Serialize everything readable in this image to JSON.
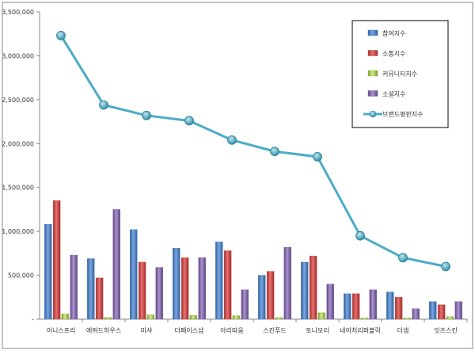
{
  "chart_data": {
    "type": "bar",
    "title": "",
    "xlabel": "",
    "ylabel": "",
    "ylim": [
      0,
      3500000
    ],
    "yticks": [
      0,
      500000,
      1000000,
      1500000,
      2000000,
      2500000,
      3000000,
      3500000
    ],
    "ytick_labels": [
      "-",
      "500,000",
      "1,000,000",
      "1,500,000",
      "2,000,000",
      "2,500,000",
      "3,000,000",
      "3,500,000"
    ],
    "grid": false,
    "legend_position": "top-right",
    "categories": [
      "이니스프리",
      "에뛰드하우스",
      "미샤",
      "더페이스샵",
      "아리따움",
      "스킨푸드",
      "토니모리",
      "네이처리퍼블릭",
      "더샘",
      "잇츠스킨"
    ],
    "series": [
      {
        "name": "참여지수",
        "kind": "bar",
        "color": "#4a7ebb",
        "values": [
          1080000,
          690000,
          1020000,
          810000,
          880000,
          500000,
          650000,
          290000,
          310000,
          200000
        ]
      },
      {
        "name": "소통지수",
        "kind": "bar",
        "color": "#c0504d",
        "values": [
          1350000,
          470000,
          650000,
          700000,
          780000,
          545000,
          720000,
          290000,
          250000,
          165000
        ]
      },
      {
        "name": "커뮤니티지수",
        "kind": "bar",
        "color": "#9bbb59",
        "values": [
          60000,
          20000,
          50000,
          45000,
          40000,
          20000,
          75000,
          15000,
          15000,
          30000
        ]
      },
      {
        "name": "소셜지수",
        "kind": "bar",
        "color": "#8064a2",
        "values": [
          730000,
          1250000,
          590000,
          700000,
          335000,
          820000,
          400000,
          335000,
          120000,
          200000
        ]
      },
      {
        "name": "브랜드평판지수",
        "kind": "line",
        "color": "#4bacc6",
        "values": [
          3230000,
          2440000,
          2320000,
          2260000,
          2040000,
          1910000,
          1850000,
          950000,
          700000,
          600000
        ]
      }
    ]
  }
}
